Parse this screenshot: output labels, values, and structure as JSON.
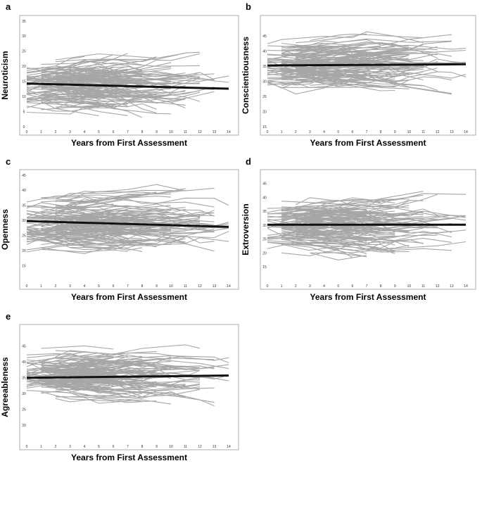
{
  "chart_data": [
    {
      "type": "line",
      "panel": "a",
      "xlabel": "Years from First Assessment",
      "ylabel": "Neuroticism",
      "xlim": [
        0,
        14
      ],
      "ylim": [
        0,
        35
      ],
      "x_ticks": [
        0,
        1,
        2,
        3,
        4,
        5,
        6,
        7,
        8,
        9,
        10,
        11,
        12,
        13,
        14
      ],
      "y_ticks": [
        0,
        5,
        10,
        15,
        20,
        25,
        30,
        35
      ],
      "trend_line": {
        "x": [
          0,
          14
        ],
        "y": [
          14.3,
          12.6
        ]
      },
      "individual_trajectories": {
        "color": "#a6a6a6",
        "count": 140,
        "center": 13.5,
        "spread": 5.5
      }
    },
    {
      "type": "line",
      "panel": "b",
      "xlabel": "Years from First Assessment",
      "ylabel": "Conscientiousness",
      "xlim": [
        0,
        14
      ],
      "ylim": [
        15,
        50
      ],
      "x_ticks": [
        0,
        1,
        2,
        3,
        4,
        5,
        6,
        7,
        8,
        9,
        10,
        11,
        12,
        13,
        14
      ],
      "y_ticks": [
        15,
        20,
        25,
        30,
        35,
        40,
        45
      ],
      "trend_line": {
        "x": [
          0,
          14
        ],
        "y": [
          35.3,
          35.7
        ]
      },
      "individual_trajectories": {
        "color": "#a6a6a6",
        "count": 140,
        "center": 35.5,
        "spread": 5.0
      }
    },
    {
      "type": "line",
      "panel": "c",
      "xlabel": "Years from First Assessment",
      "ylabel": "Openness",
      "xlim": [
        0,
        14
      ],
      "ylim": [
        10,
        45
      ],
      "x_ticks": [
        0,
        1,
        2,
        3,
        4,
        5,
        6,
        7,
        8,
        9,
        10,
        11,
        12,
        13,
        14
      ],
      "y_ticks": [
        15,
        20,
        25,
        30,
        35,
        40,
        45
      ],
      "trend_line": {
        "x": [
          0,
          14
        ],
        "y": [
          29.8,
          27.9
        ]
      },
      "individual_trajectories": {
        "color": "#a6a6a6",
        "count": 140,
        "center": 29,
        "spread": 5.5
      }
    },
    {
      "type": "line",
      "panel": "d",
      "xlabel": "Years from First Assessment",
      "ylabel": "Extroversion",
      "xlim": [
        0,
        14
      ],
      "ylim": [
        10,
        48
      ],
      "x_ticks": [
        0,
        1,
        2,
        3,
        4,
        5,
        6,
        7,
        8,
        9,
        10,
        11,
        12,
        13,
        14
      ],
      "y_ticks": [
        15,
        20,
        25,
        30,
        35,
        40,
        45
      ],
      "trend_line": {
        "x": [
          0,
          14
        ],
        "y": [
          30.2,
          30.2
        ]
      },
      "individual_trajectories": {
        "color": "#a6a6a6",
        "count": 140,
        "center": 30,
        "spread": 6.0
      }
    },
    {
      "type": "line",
      "panel": "e",
      "xlabel": "Years from First Assessment",
      "ylabel": "Agreeableness",
      "xlim": [
        0,
        14
      ],
      "ylim": [
        15,
        50
      ],
      "x_ticks": [
        0,
        1,
        2,
        3,
        4,
        5,
        6,
        7,
        8,
        9,
        10,
        11,
        12,
        13,
        14
      ],
      "y_ticks": [
        20,
        25,
        30,
        35,
        40,
        45
      ],
      "trend_line": {
        "x": [
          0,
          14
        ],
        "y": [
          35.0,
          35.7
        ]
      },
      "individual_trajectories": {
        "color": "#a6a6a6",
        "count": 140,
        "center": 35.5,
        "spread": 5.0
      }
    }
  ],
  "colors": {
    "trajectory": "#a6a6a6",
    "trend": "#111111",
    "frame": "#9a9a9a"
  }
}
